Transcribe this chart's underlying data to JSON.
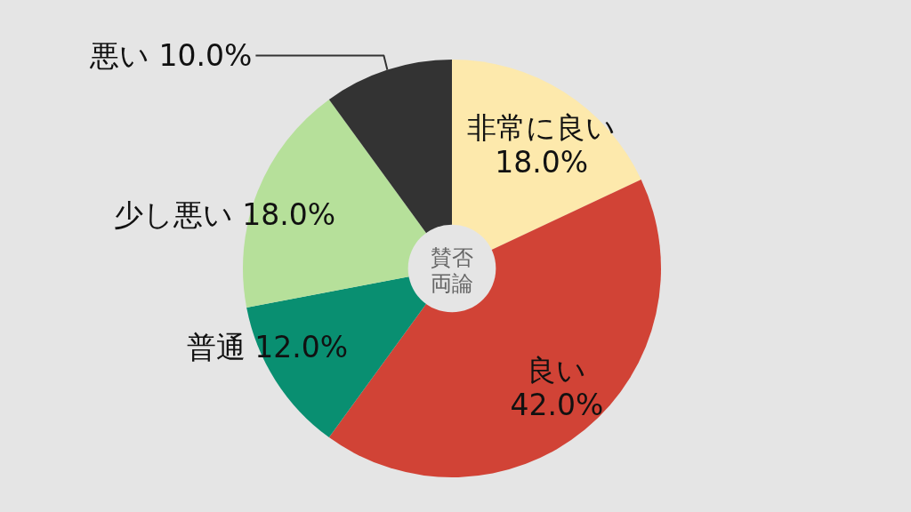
{
  "chart_data": {
    "type": "donut",
    "title": "賛否両論",
    "categories": [
      "非常に良い",
      "良い",
      "普通",
      "少し悪い",
      "悪い"
    ],
    "values": [
      18.0,
      42.0,
      12.0,
      18.0,
      10.0
    ],
    "value_labels": [
      "18.0%",
      "42.0%",
      "12.0%",
      "18.0%",
      "10.0%"
    ],
    "colors": [
      "#fde9ac",
      "#d14336",
      "#098f71",
      "#b6e09a",
      "#333333"
    ],
    "legend": false
  }
}
